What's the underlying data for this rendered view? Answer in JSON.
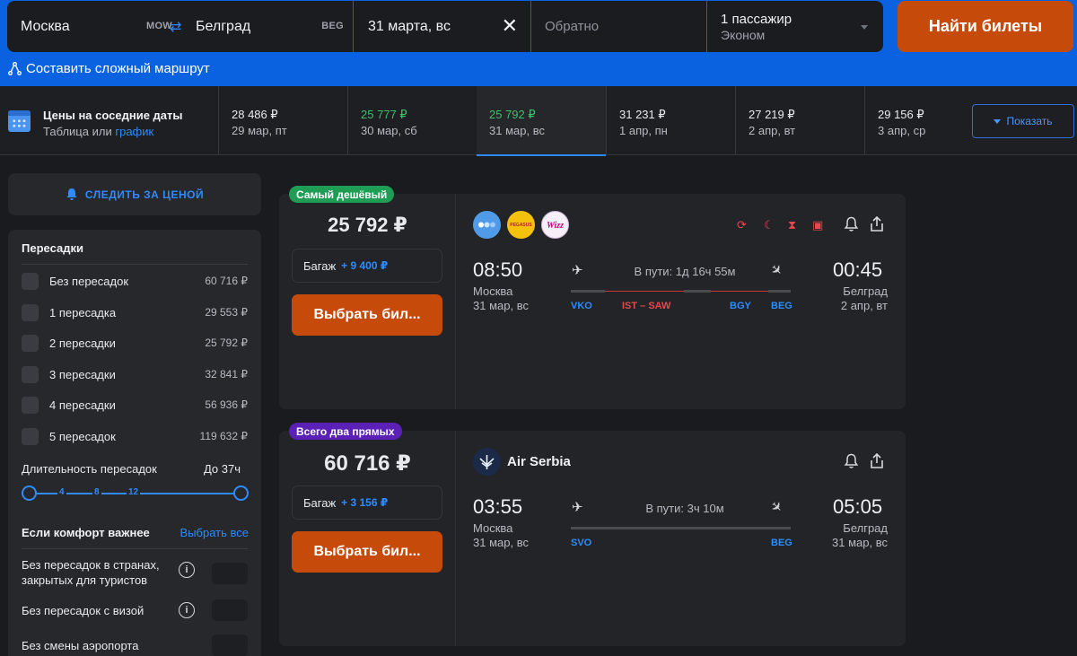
{
  "search": {
    "origin_city": "Москва",
    "origin_code": "MOW",
    "dest_city": "Белград",
    "dest_code": "BEG",
    "date": "31 марта, вс",
    "return_placeholder": "Обратно",
    "passengers": "1 пассажир",
    "cabin": "Эконом",
    "search_button": "Найти билеты",
    "complex_route": "Составить сложный маршрут"
  },
  "neighbor_dates": {
    "title": "Цены на соседние даты",
    "sub_prefix": "Таблица",
    "sub_or": "или",
    "sub_link": "график",
    "show_button": "Показать",
    "dates": [
      {
        "price": "28 486 ₽",
        "day": "29 мар, пт",
        "cheap": false,
        "active": false
      },
      {
        "price": "25 777 ₽",
        "day": "30 мар, сб",
        "cheap": true,
        "active": false
      },
      {
        "price": "25 792 ₽",
        "day": "31 мар, вс",
        "cheap": true,
        "active": true
      },
      {
        "price": "31 231 ₽",
        "day": "1 апр, пн",
        "cheap": false,
        "active": false
      },
      {
        "price": "27 219 ₽",
        "day": "2 апр, вт",
        "cheap": false,
        "active": false
      },
      {
        "price": "29 156 ₽",
        "day": "3 апр, ср",
        "cheap": false,
        "active": false
      }
    ]
  },
  "filters": {
    "track_price": "СЛЕДИТЬ ЗА ЦЕНОЙ",
    "stops_title": "Пересадки",
    "stops": [
      {
        "label": "Без пересадок",
        "price": "60 716 ₽"
      },
      {
        "label": "1 пересадка",
        "price": "29 553 ₽"
      },
      {
        "label": "2 пересадки",
        "price": "25 792 ₽"
      },
      {
        "label": "3 пересадки",
        "price": "32 841 ₽"
      },
      {
        "label": "4 пересадки",
        "price": "56 936 ₽"
      },
      {
        "label": "5 пересадок",
        "price": "119 632 ₽"
      }
    ],
    "duration_label": "Длительность пересадок",
    "duration_max": "До 37ч",
    "slider_ticks": [
      "4",
      "8",
      "12"
    ],
    "comfort_title": "Если комфорт важнее",
    "comfort_select_all": "Выбрать все",
    "comfort_options": [
      "Без пересадок в странах, закрытых для туристов",
      "Без пересадок с визой",
      "Без смены аэропорта"
    ]
  },
  "tickets": [
    {
      "badge": "Самый дешёвый",
      "badge_color": "#1f9d55",
      "price": "25 792 ₽",
      "baggage_label": "Багаж",
      "baggage_price": "+ 9 400 ₽",
      "select_button": "Выбрать бил...",
      "airline_icons": [
        "blue-dots-airline-logo",
        "pegasus-logo",
        "wizz-logo"
      ],
      "pegasus_text": "PEGASUS",
      "wizz_text": "Wizz",
      "dep_time": "08:50",
      "arr_time": "00:45",
      "dep_city": "Москва",
      "dep_date": "31 мар, вс",
      "arr_city": "Белград",
      "arr_date": "2 апр, вт",
      "duration": "В пути: 1д 16ч 55м",
      "codes": {
        "dep": "VKO",
        "transfer": "IST – SAW",
        "mid": "BGY",
        "arr": "BEG"
      }
    },
    {
      "badge": "Всего два прямых",
      "badge_color": "#5b21b6",
      "price": "60 716 ₽",
      "baggage_label": "Багаж",
      "baggage_price": "+ 3 156 ₽",
      "select_button": "Выбрать бил...",
      "airline_name": "Air Serbia",
      "dep_time": "03:55",
      "arr_time": "05:05",
      "dep_city": "Москва",
      "dep_date": "31 мар, вс",
      "arr_city": "Белград",
      "arr_date": "31 мар, вс",
      "duration": "В пути: 3ч 10м",
      "codes": {
        "dep": "SVO",
        "arr": "BEG"
      }
    }
  ]
}
